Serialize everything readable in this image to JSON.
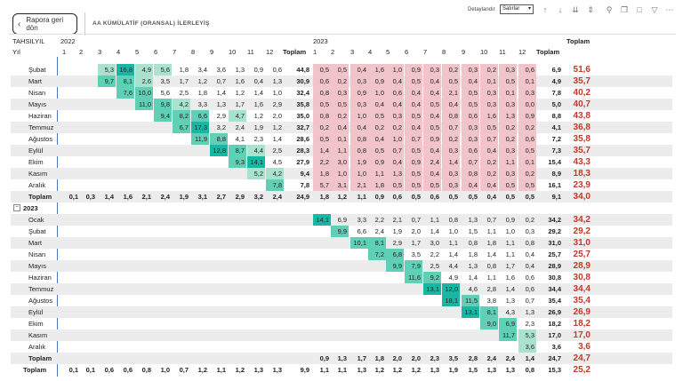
{
  "topbar": {
    "back_label": "Rapora geri dön",
    "report_title": "AA KÜMÜLATİF (ORANSAL) İLERLEYİŞ",
    "detail_label": "Detaylandır",
    "detail_select": "Satırlar",
    "icons": [
      "arrow-up-icon",
      "arrow-down-icon",
      "double-arrow-down-icon",
      "expand-icon",
      "pin-icon",
      "copy-icon",
      "comment-icon",
      "filter-icon",
      "more-icon"
    ]
  },
  "header": {
    "row_field": "TAHSILYIL",
    "row_field2": "Yıl",
    "year1": "2022",
    "year2": "2023",
    "months": [
      "1",
      "2",
      "3",
      "4",
      "5",
      "6",
      "7",
      "8",
      "9",
      "10",
      "11",
      "12"
    ],
    "subtotal_label": "Toplam",
    "grand_label": "Toplam"
  },
  "colors": {
    "teal_dark": "#18b7a4",
    "teal_mid": "#5fcfb5",
    "teal_light": "#a9e3cf",
    "pink": "#f0c4c9",
    "pink_light": "#f5d5d8",
    "grand_red": "#c0392b",
    "row_shade": "#ececec",
    "line_blue": "#4a78c0"
  },
  "rows": [
    {
      "label": "Şubat",
      "shade": false,
      "c2022": [
        "",
        "",
        "5,3",
        "16,8",
        "4,9",
        "5,6",
        "1,8",
        "3,4",
        "3,6",
        "1,3",
        "0,9",
        "0,6"
      ],
      "t2022": "44,8",
      "c2023": [
        "0,5",
        "0,5",
        "0,4",
        "1,6",
        "1,0",
        "0,9",
        "0,3",
        "0,2",
        "0,3",
        "0,2",
        "0,3",
        "0,6"
      ],
      "t2023": "6,9",
      "grand": "51,6",
      "hl": [
        2,
        3,
        4,
        5
      ]
    },
    {
      "label": "Mart",
      "shade": true,
      "c2022": [
        "",
        "",
        "9,7",
        "8,1",
        "2,6",
        "3,5",
        "1,7",
        "1,2",
        "0,7",
        "1,6",
        "0,4",
        "1,3"
      ],
      "t2022": "30,9",
      "c2023": [
        "0,6",
        "0,2",
        "0,3",
        "0,9",
        "0,4",
        "0,5",
        "0,4",
        "0,5",
        "0,4",
        "0,1",
        "0,5",
        "0,1"
      ],
      "t2023": "4,9",
      "grand": "35,7",
      "hl": [
        2,
        3,
        4
      ]
    },
    {
      "label": "Nisan",
      "shade": false,
      "c2022": [
        "",
        "",
        "",
        "7,6",
        "10,0",
        "5,6",
        "2,5",
        "1,8",
        "1,4",
        "1,2",
        "1,4",
        "1,0"
      ],
      "t2022": "32,4",
      "c2023": [
        "0,8",
        "0,3",
        "0,9",
        "1,0",
        "0,6",
        "0,4",
        "0,4",
        "2,1",
        "0,5",
        "0,3",
        "0,1",
        "0,3"
      ],
      "t2023": "7,8",
      "grand": "40,2",
      "hl": [
        3,
        4
      ]
    },
    {
      "label": "Mayıs",
      "shade": true,
      "c2022": [
        "",
        "",
        "",
        "",
        "11,0",
        "9,8",
        "4,2",
        "3,3",
        "1,3",
        "1,7",
        "1,6",
        "2,9"
      ],
      "t2022": "35,8",
      "c2023": [
        "0,5",
        "0,5",
        "0,3",
        "0,4",
        "0,4",
        "0,4",
        "0,5",
        "0,4",
        "0,5",
        "0,3",
        "0,3",
        "0,0"
      ],
      "t2023": "5,0",
      "grand": "40,7",
      "hl": [
        4,
        5,
        6
      ]
    },
    {
      "label": "Haziran",
      "shade": false,
      "c2022": [
        "",
        "",
        "",
        "",
        "",
        "9,4",
        "8,2",
        "6,6",
        "2,9",
        "4,7",
        "1,2",
        "2,0"
      ],
      "t2022": "35,0",
      "c2023": [
        "0,8",
        "0,2",
        "1,0",
        "0,5",
        "0,3",
        "0,5",
        "0,4",
        "0,8",
        "0,6",
        "1,6",
        "1,3",
        "0,9"
      ],
      "t2023": "8,8",
      "grand": "43,8",
      "hl": [
        5,
        6,
        7,
        9
      ]
    },
    {
      "label": "Temmuz",
      "shade": true,
      "c2022": [
        "",
        "",
        "",
        "",
        "",
        "",
        "6,7",
        "17,3",
        "3,2",
        "2,4",
        "1,9",
        "1,2"
      ],
      "t2022": "32,7",
      "c2023": [
        "0,2",
        "0,4",
        "0,4",
        "0,2",
        "0,2",
        "0,4",
        "0,5",
        "0,7",
        "0,3",
        "0,5",
        "0,2",
        "0,2"
      ],
      "t2023": "4,1",
      "grand": "36,8",
      "hl": [
        6,
        7
      ]
    },
    {
      "label": "Ağustos",
      "shade": false,
      "c2022": [
        "",
        "",
        "",
        "",
        "",
        "",
        "",
        "11,9",
        "8,8",
        "4,1",
        "2,3",
        "1,4"
      ],
      "t2022": "28,6",
      "c2023": [
        "0,5",
        "0,1",
        "0,8",
        "0,4",
        "1,0",
        "0,7",
        "0,9",
        "0,2",
        "0,3",
        "0,7",
        "0,2",
        "0,6"
      ],
      "t2023": "7,2",
      "grand": "35,8",
      "hl": [
        7,
        8
      ]
    },
    {
      "label": "Eylül",
      "shade": true,
      "c2022": [
        "",
        "",
        "",
        "",
        "",
        "",
        "",
        "",
        "12,8",
        "8,7",
        "4,4",
        "2,5"
      ],
      "t2022": "28,3",
      "c2023": [
        "1,4",
        "1,1",
        "0,8",
        "0,5",
        "0,7",
        "0,5",
        "0,4",
        "0,3",
        "0,6",
        "0,4",
        "0,3",
        "0,5"
      ],
      "t2023": "7,3",
      "grand": "35,7",
      "hl": [
        8,
        9,
        10
      ]
    },
    {
      "label": "Ekim",
      "shade": false,
      "c2022": [
        "",
        "",
        "",
        "",
        "",
        "",
        "",
        "",
        "",
        "9,3",
        "14,1",
        "4,5"
      ],
      "t2022": "27,9",
      "c2023": [
        "2,2",
        "3,0",
        "1,9",
        "0,9",
        "0,4",
        "0,9",
        "2,4",
        "1,4",
        "0,7",
        "0,2",
        "1,1",
        "0,1"
      ],
      "t2023": "15,4",
      "grand": "43,3",
      "hl": [
        9,
        10
      ]
    },
    {
      "label": "Kasım",
      "shade": true,
      "c2022": [
        "",
        "",
        "",
        "",
        "",
        "",
        "",
        "",
        "",
        "",
        "5,2",
        "4,2"
      ],
      "t2022": "9,4",
      "c2023": [
        "1,8",
        "1,0",
        "1,0",
        "1,1",
        "1,3",
        "0,5",
        "0,4",
        "0,3",
        "0,8",
        "0,2",
        "0,3",
        "0,2"
      ],
      "t2023": "8,9",
      "grand": "18,3",
      "hl": [
        10,
        11
      ]
    },
    {
      "label": "Aralık",
      "shade": false,
      "c2022": [
        "",
        "",
        "",
        "",
        "",
        "",
        "",
        "",
        "",
        "",
        "",
        "7,8"
      ],
      "t2022": "7,8",
      "c2023": [
        "5,7",
        "3,1",
        "2,1",
        "1,8",
        "0,5",
        "0,5",
        "0,5",
        "0,3",
        "0,4",
        "0,4",
        "0,5",
        "0,5"
      ],
      "t2023": "16,1",
      "grand": "23,9",
      "hl": [
        11
      ]
    },
    {
      "label": "Toplam",
      "shade": true,
      "bold": true,
      "c2022": [
        "0,1",
        "0,3",
        "1,4",
        "1,6",
        "2,1",
        "2,4",
        "1,9",
        "3,1",
        "2,7",
        "2,9",
        "3,2",
        "2,4"
      ],
      "t2022": "24,9",
      "c2023": [
        "1,8",
        "1,2",
        "1,1",
        "0,9",
        "0,6",
        "0,5",
        "0,6",
        "0,5",
        "0,5",
        "0,4",
        "0,5",
        "0,5"
      ],
      "t2023": "9,1",
      "grand": "34,0",
      "hl": []
    }
  ],
  "group2023": {
    "label": "2023",
    "rows": [
      {
        "label": "Ocak",
        "shade": true,
        "c2023": [
          "14,1",
          "6,9",
          "3,3",
          "2,2",
          "2,1",
          "0,7",
          "1,1",
          "0,8",
          "1,3",
          "0,7",
          "0,9",
          "0,2"
        ],
        "t2023": "34,2",
        "grand": "34,2",
        "hl": [
          0
        ]
      },
      {
        "label": "Şubat",
        "shade": false,
        "c2023": [
          "",
          "9,9",
          "6,6",
          "2,4",
          "1,9",
          "2,0",
          "1,4",
          "1,0",
          "1,5",
          "1,1",
          "1,0",
          "0,3"
        ],
        "t2023": "29,2",
        "grand": "29,2",
        "hl": [
          1
        ]
      },
      {
        "label": "Mart",
        "shade": true,
        "c2023": [
          "",
          "",
          "10,1",
          "8,1",
          "2,9",
          "1,7",
          "3,0",
          "1,1",
          "0,8",
          "1,8",
          "1,1",
          "0,8"
        ],
        "t2023": "31,0",
        "grand": "31,0",
        "hl": [
          2,
          3
        ]
      },
      {
        "label": "Nisan",
        "shade": false,
        "c2023": [
          "",
          "",
          "",
          "7,2",
          "6,8",
          "3,5",
          "2,2",
          "1,4",
          "1,8",
          "1,4",
          "1,1",
          "0,4"
        ],
        "t2023": "25,7",
        "grand": "25,7",
        "hl": [
          3,
          4
        ]
      },
      {
        "label": "Mayıs",
        "shade": true,
        "c2023": [
          "",
          "",
          "",
          "",
          "9,9",
          "7,9",
          "2,5",
          "4,4",
          "1,3",
          "0,8",
          "1,7",
          "0,4"
        ],
        "t2023": "28,9",
        "grand": "28,9",
        "hl": [
          4,
          5
        ]
      },
      {
        "label": "Haziran",
        "shade": false,
        "c2023": [
          "",
          "",
          "",
          "",
          "",
          "11,6",
          "9,2",
          "4,9",
          "1,4",
          "1,1",
          "1,6",
          "0,6"
        ],
        "t2023": "30,8",
        "grand": "30,8",
        "hl": [
          5,
          6
        ]
      },
      {
        "label": "Temmuz",
        "shade": true,
        "c2023": [
          "",
          "",
          "",
          "",
          "",
          "",
          "13,1",
          "12,0",
          "4,6",
          "2,8",
          "1,4",
          "0,6"
        ],
        "t2023": "34,4",
        "grand": "34,4",
        "hl": [
          6,
          7
        ]
      },
      {
        "label": "Ağustos",
        "shade": false,
        "c2023": [
          "",
          "",
          "",
          "",
          "",
          "",
          "",
          "18,1",
          "11,5",
          "3,8",
          "1,3",
          "0,7"
        ],
        "t2023": "35,4",
        "grand": "35,4",
        "hl": [
          7,
          8
        ]
      },
      {
        "label": "Eylül",
        "shade": true,
        "c2023": [
          "",
          "",
          "",
          "",
          "",
          "",
          "",
          "",
          "13,1",
          "8,1",
          "4,3",
          "1,3"
        ],
        "t2023": "26,9",
        "grand": "26,9",
        "hl": [
          8,
          9
        ]
      },
      {
        "label": "Ekim",
        "shade": false,
        "c2023": [
          "",
          "",
          "",
          "",
          "",
          "",
          "",
          "",
          "",
          "9,0",
          "6,9",
          "2,3"
        ],
        "t2023": "18,2",
        "grand": "18,2",
        "hl": [
          9,
          10
        ]
      },
      {
        "label": "Kasım",
        "shade": true,
        "c2023": [
          "",
          "",
          "",
          "",
          "",
          "",
          "",
          "",
          "",
          "",
          "11,7",
          "5,3"
        ],
        "t2023": "17,0",
        "grand": "17,0",
        "hl": [
          10,
          11
        ]
      },
      {
        "label": "Aralık",
        "shade": false,
        "c2023": [
          "",
          "",
          "",
          "",
          "",
          "",
          "",
          "",
          "",
          "",
          "",
          "3,6"
        ],
        "t2023": "3,6",
        "grand": "3,6",
        "hl": [
          11
        ]
      },
      {
        "label": "Toplam",
        "shade": true,
        "bold": true,
        "c2023": [
          "0,9",
          "1,3",
          "1,7",
          "1,8",
          "2,0",
          "2,0",
          "2,3",
          "3,5",
          "2,8",
          "2,4",
          "2,4",
          "1,4"
        ],
        "t2023": "24,7",
        "grand": "24,7",
        "hl": []
      }
    ]
  },
  "grand_total": {
    "label": "Toplam",
    "c2022": [
      "0,1",
      "0,1",
      "0,6",
      "0,6",
      "0,8",
      "1,0",
      "0,7",
      "1,2",
      "1,1",
      "1,2",
      "1,3",
      "1,3"
    ],
    "t2022": "9,9",
    "c2023": [
      "1,1",
      "1,1",
      "1,3",
      "1,2",
      "1,2",
      "1,2",
      "1,3",
      "1,9",
      "1,5",
      "1,3",
      "1,3",
      "0,8"
    ],
    "t2023": "15,3",
    "grand": "25,2"
  }
}
